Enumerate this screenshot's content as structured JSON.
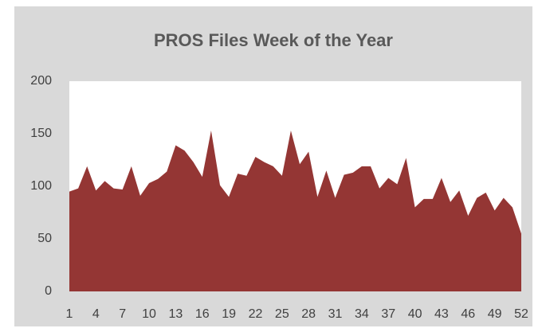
{
  "chart_data": {
    "type": "area",
    "title": "PROS Files Week of the Year",
    "categories": [
      1,
      null,
      null,
      4,
      null,
      null,
      7,
      null,
      null,
      10,
      null,
      null,
      13,
      null,
      null,
      16,
      null,
      null,
      19,
      null,
      null,
      22,
      null,
      null,
      25,
      null,
      null,
      28,
      null,
      null,
      31,
      null,
      null,
      34,
      null,
      null,
      37,
      null,
      null,
      40,
      null,
      null,
      43,
      null,
      null,
      46,
      null,
      null,
      49,
      null,
      null,
      52
    ],
    "values": [
      95,
      98,
      119,
      96,
      105,
      98,
      97,
      119,
      91,
      103,
      107,
      114,
      139,
      134,
      123,
      109,
      153,
      101,
      90,
      112,
      110,
      128,
      123,
      119,
      110,
      153,
      121,
      133,
      90,
      115,
      89,
      111,
      113,
      119,
      119,
      98,
      108,
      102,
      127,
      80,
      88,
      88,
      108,
      85,
      96,
      72,
      89,
      94,
      77,
      89,
      80,
      55
    ],
    "color": "#943634",
    "ylim": [
      0,
      200
    ],
    "yticks": [
      0,
      50,
      100,
      150,
      200
    ],
    "grid": false
  }
}
